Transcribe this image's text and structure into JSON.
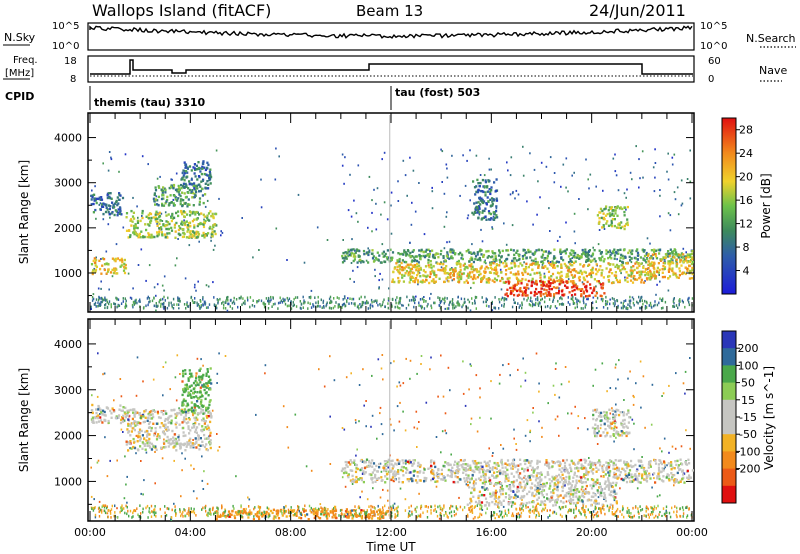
{
  "header": {
    "title": "Wallops Island (fitACF)",
    "beam": "Beam 13",
    "date": "24/Jun/2011"
  },
  "top_panels": {
    "nsky_label": "N.Sky",
    "nsky_ticks": [
      "10^5",
      "10^0"
    ],
    "nsearch_label": "N.Search",
    "nsearch_ticks": [
      "10^5",
      "10^0"
    ],
    "freq_label": "Freq.",
    "freq_unit": "[MHz]",
    "freq_ticks": [
      "18",
      "8"
    ],
    "nave_label": "Nave",
    "nave_ticks": [
      "60",
      "0"
    ],
    "cpid_label": "CPID",
    "cpid_segments": [
      {
        "label": "themis (tau) 3310",
        "start_hour": 0.0
      },
      {
        "label": "tau (fost) 503",
        "start_hour": 11.95
      }
    ]
  },
  "chart_data": [
    {
      "type": "heatmap",
      "title": "",
      "xlabel": "Time UT",
      "ylabel": "Slant Range [km]",
      "xlim_hours": [
        0,
        24
      ],
      "ylim": [
        180,
        4500
      ],
      "x_ticks": [
        "00:00",
        "04:00",
        "08:00",
        "12:00",
        "16:00",
        "20:00",
        "00:00"
      ],
      "y_ticks": [
        1000,
        2000,
        3000,
        4000
      ],
      "colorbar": {
        "label": "Power [dB]",
        "ticks": [
          "28",
          "24",
          "20",
          "16",
          "12",
          "8",
          "4"
        ],
        "range": [
          0,
          30
        ]
      },
      "regions": [
        {
          "t0": 0.0,
          "t1": 1.4,
          "r0": 1000,
          "r1": 1350,
          "level": 20
        },
        {
          "t0": 0.0,
          "t1": 1.3,
          "r0": 2300,
          "r1": 2800,
          "level": 8
        },
        {
          "t0": 1.4,
          "t1": 5.0,
          "r0": 1800,
          "r1": 2400,
          "level": 16
        },
        {
          "t0": 2.5,
          "t1": 4.6,
          "r0": 2500,
          "r1": 3000,
          "level": 12
        },
        {
          "t0": 3.6,
          "t1": 4.8,
          "r0": 2900,
          "r1": 3500,
          "level": 8
        },
        {
          "t0": 10.0,
          "t1": 24.0,
          "r0": 1250,
          "r1": 1550,
          "level": 12
        },
        {
          "t0": 12.0,
          "t1": 22.5,
          "r0": 800,
          "r1": 1250,
          "level": 20
        },
        {
          "t0": 16.5,
          "t1": 20.5,
          "r0": 500,
          "r1": 850,
          "level": 28
        },
        {
          "t0": 15.2,
          "t1": 16.2,
          "r0": 2200,
          "r1": 3100,
          "level": 8
        },
        {
          "t0": 20.2,
          "t1": 21.4,
          "r0": 2000,
          "r1": 2500,
          "level": 16
        },
        {
          "t0": 22.2,
          "t1": 24.0,
          "r0": 900,
          "r1": 1450,
          "level": 20
        }
      ]
    },
    {
      "type": "heatmap",
      "title": "",
      "xlabel": "Time UT",
      "ylabel": "Slant Range [km]",
      "xlim_hours": [
        0,
        24
      ],
      "ylim": [
        180,
        4500
      ],
      "x_ticks": [
        "00:00",
        "04:00",
        "08:00",
        "12:00",
        "16:00",
        "20:00",
        "00:00"
      ],
      "y_ticks": [
        1000,
        2000,
        3000,
        4000
      ],
      "colorbar": {
        "label": "Velocity [m s^-1]",
        "ticks": [
          "200",
          "100",
          "50",
          "15",
          "-15",
          "-50",
          "-100",
          "-200"
        ],
        "range": [
          -250,
          250
        ]
      },
      "regions": [
        {
          "t0": 0.0,
          "t1": 1.4,
          "r0": 2300,
          "r1": 2700,
          "level": 0
        },
        {
          "t0": 1.4,
          "t1": 4.8,
          "r0": 1700,
          "r1": 2600,
          "level": 0
        },
        {
          "t0": 3.6,
          "t1": 4.8,
          "r0": 2500,
          "r1": 3500,
          "level": 40
        },
        {
          "t0": 10.0,
          "t1": 24.0,
          "r0": 1000,
          "r1": 1500,
          "level": 0
        },
        {
          "t0": 15.0,
          "t1": 21.0,
          "r0": 500,
          "r1": 1000,
          "level": 0
        },
        {
          "t0": 5.0,
          "t1": 12.0,
          "r0": 200,
          "r1": 420,
          "level": -60
        },
        {
          "t0": 20.0,
          "t1": 21.5,
          "r0": 2000,
          "r1": 2600,
          "level": 0
        }
      ]
    }
  ]
}
